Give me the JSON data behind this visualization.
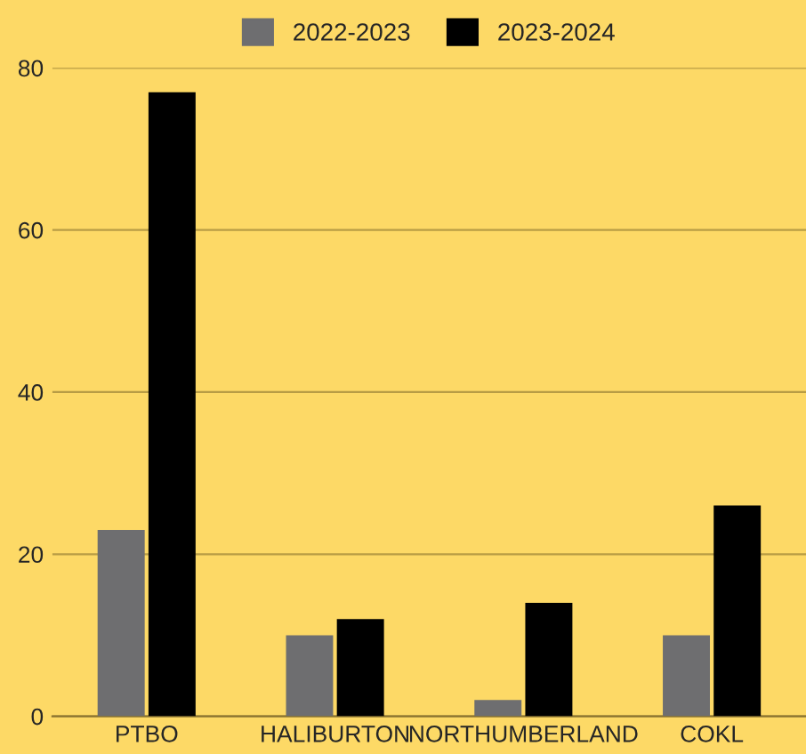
{
  "chart_data": {
    "type": "bar",
    "categories": [
      "PTBO",
      "HALIBURTON",
      "NORTHUMBERLAND",
      "COKL"
    ],
    "series": [
      {
        "name": "2022-2023",
        "color": "#6e6e70",
        "values": [
          23,
          10,
          2,
          10
        ]
      },
      {
        "name": "2023-2024",
        "color": "#000000",
        "values": [
          77,
          12,
          14,
          26
        ]
      }
    ],
    "ylim": [
      0,
      80
    ],
    "yticks": [
      0,
      20,
      40,
      60,
      80
    ],
    "grid": "y",
    "legend": "top"
  }
}
